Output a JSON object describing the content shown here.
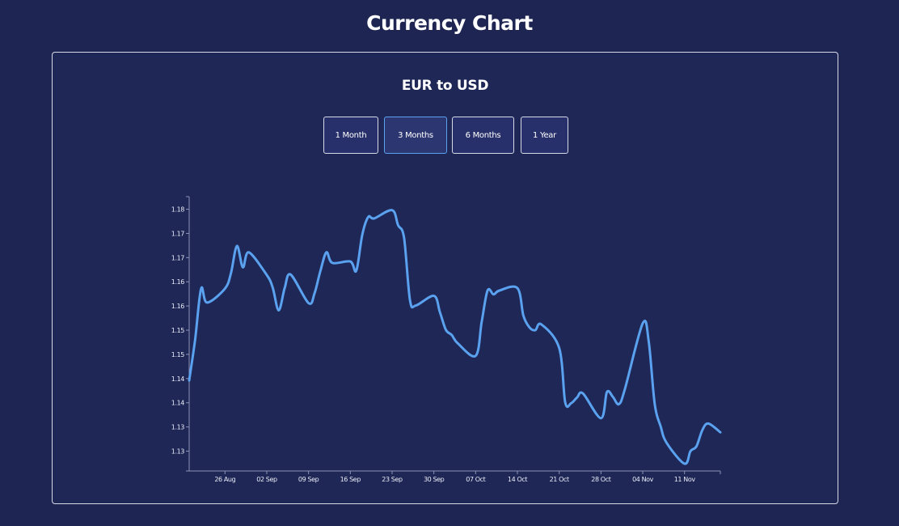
{
  "page": {
    "title": "Currency Chart"
  },
  "card": {
    "chart_title": "EUR to USD",
    "range_buttons": [
      {
        "label": "1 Month",
        "active": false
      },
      {
        "label": "3 Months",
        "active": true
      },
      {
        "label": "6 Months",
        "active": false
      },
      {
        "label": "1 Year",
        "active": false
      }
    ]
  },
  "colors": {
    "background": "#1e2552",
    "line": "#5aa2f0",
    "active_button_border": "#5aa2f0"
  },
  "chart_data": {
    "type": "line",
    "title": "EUR to USD",
    "xlabel": "",
    "ylabel": "",
    "grid": false,
    "legend": "none",
    "x_tick_labels": [
      "26 Aug",
      "02 Sep",
      "09 Sep",
      "16 Sep",
      "23 Sep",
      "30 Sep",
      "07 Oct",
      "14 Oct",
      "21 Oct",
      "28 Oct",
      "04 Nov",
      "11 Nov"
    ],
    "y_tick_labels": [
      "1.13",
      "1.13",
      "1.14",
      "1.14",
      "1.15",
      "1.15",
      "1.16",
      "1.16",
      "1.17",
      "1.17",
      "1.18"
    ],
    "y_tick_values": [
      1.13,
      1.135,
      1.14,
      1.145,
      1.15,
      1.155,
      1.16,
      1.165,
      1.17,
      1.175,
      1.18
    ],
    "ylim": [
      1.1259,
      1.1826
    ],
    "xlim": [
      "2024-08-20",
      "2024-11-17"
    ],
    "series": [
      {
        "x": [
          "2024-08-20",
          "2024-08-21",
          "2024-08-22",
          "2024-08-23",
          "2024-08-26",
          "2024-08-27",
          "2024-08-28",
          "2024-08-29",
          "2024-08-30",
          "2024-09-02",
          "2024-09-03",
          "2024-09-04",
          "2024-09-05",
          "2024-09-06",
          "2024-09-09",
          "2024-09-10",
          "2024-09-11",
          "2024-09-12",
          "2024-09-13",
          "2024-09-16",
          "2024-09-17",
          "2024-09-18",
          "2024-09-19",
          "2024-09-20",
          "2024-09-23",
          "2024-09-24",
          "2024-09-25",
          "2024-09-26",
          "2024-09-27",
          "2024-09-30",
          "2024-10-01",
          "2024-10-02",
          "2024-10-03",
          "2024-10-04",
          "2024-10-07",
          "2024-10-08",
          "2024-10-09",
          "2024-10-10",
          "2024-10-11",
          "2024-10-14",
          "2024-10-15",
          "2024-10-16",
          "2024-10-17",
          "2024-10-18",
          "2024-10-21",
          "2024-10-22",
          "2024-10-23",
          "2024-10-24",
          "2024-10-25",
          "2024-10-28",
          "2024-10-29",
          "2024-10-30",
          "2024-10-31",
          "2024-11-01",
          "2024-11-04",
          "2024-11-05",
          "2024-11-06",
          "2024-11-07",
          "2024-11-08",
          "2024-11-11",
          "2024-11-12",
          "2024-11-13",
          "2024-11-14",
          "2024-11-15",
          "2024-11-17"
        ],
        "values": [
          1.1446,
          1.1531,
          1.1636,
          1.1607,
          1.1636,
          1.1668,
          1.1724,
          1.168,
          1.1711,
          1.1664,
          1.1638,
          1.1591,
          1.1637,
          1.1665,
          1.1606,
          1.1626,
          1.1673,
          1.1711,
          1.1689,
          1.1692,
          1.1673,
          1.1747,
          1.1784,
          1.1781,
          1.1798,
          1.1767,
          1.1741,
          1.1612,
          1.1601,
          1.1621,
          1.1588,
          1.1551,
          1.154,
          1.1523,
          1.1497,
          1.1566,
          1.1632,
          1.1624,
          1.1632,
          1.1637,
          1.158,
          1.1556,
          1.155,
          1.1562,
          1.1513,
          1.1401,
          1.1399,
          1.1411,
          1.1419,
          1.1368,
          1.1422,
          1.1412,
          1.1397,
          1.1428,
          1.1564,
          1.1527,
          1.1398,
          1.1351,
          1.1317,
          1.1274,
          1.13,
          1.131,
          1.1344,
          1.1357,
          1.1339
        ]
      }
    ]
  }
}
